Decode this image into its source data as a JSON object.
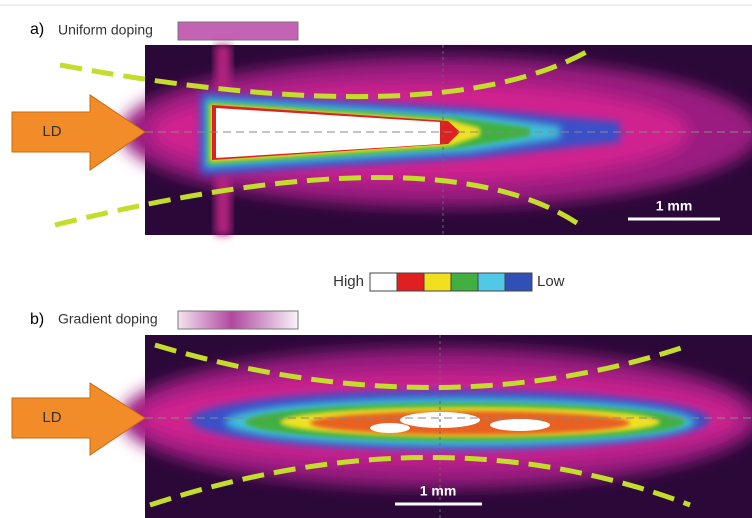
{
  "panel_a": {
    "label": "a)",
    "title": "Uniform doping",
    "arrow": "LD",
    "scale_bar": "1 mm"
  },
  "legend": {
    "high": "High",
    "low": "Low"
  },
  "panel_b": {
    "label": "b)",
    "title": "Gradient doping",
    "arrow": "LD",
    "scale_bar": "1 mm"
  }
}
